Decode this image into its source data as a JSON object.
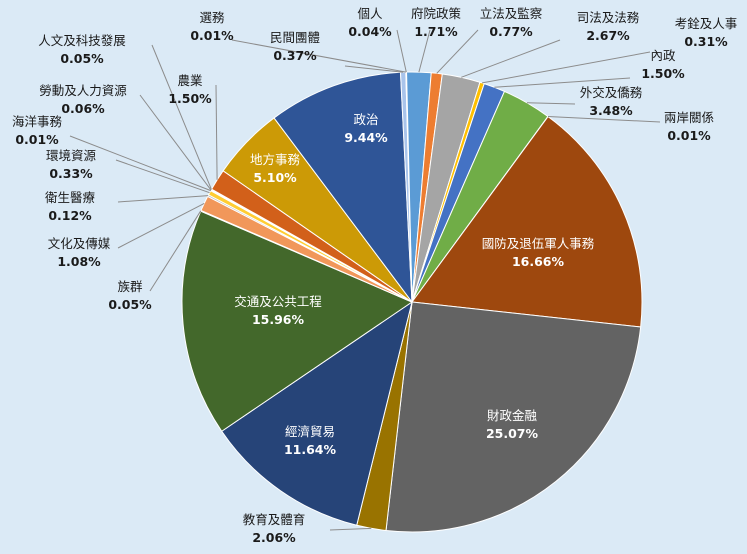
{
  "chart_data": {
    "type": "pie",
    "title": "",
    "start_category": "個人",
    "direction": "clockwise",
    "slices": [
      {
        "name": "個人",
        "value": 0.04,
        "label": "0.04%",
        "color": "#5a8a3c"
      },
      {
        "name": "府院政策",
        "value": 1.71,
        "label": "1.71%",
        "color": "#5b9bd5"
      },
      {
        "name": "立法及監察",
        "value": 0.77,
        "label": "0.77%",
        "color": "#ed7d31"
      },
      {
        "name": "司法及法務",
        "value": 2.67,
        "label": "2.67%",
        "color": "#a5a5a5"
      },
      {
        "name": "考銓及人事",
        "value": 0.31,
        "label": "0.31%",
        "color": "#ffc000"
      },
      {
        "name": "內政",
        "value": 1.5,
        "label": "1.50%",
        "color": "#4472c4"
      },
      {
        "name": "外交及僑務",
        "value": 3.48,
        "label": "3.48%",
        "color": "#70ad47"
      },
      {
        "name": "兩岸關係",
        "value": 0.01,
        "label": "0.01%",
        "color": "#264478"
      },
      {
        "name": "國防及退伍軍人事務",
        "value": 16.66,
        "label": "16.66%",
        "color": "#9e480e"
      },
      {
        "name": "財政金融",
        "value": 25.07,
        "label": "25.07%",
        "color": "#636363"
      },
      {
        "name": "教育及體育",
        "value": 2.06,
        "label": "2.06%",
        "color": "#997300"
      },
      {
        "name": "經濟貿易",
        "value": 11.64,
        "label": "11.64%",
        "color": "#264478"
      },
      {
        "name": "交通及公共工程",
        "value": 15.96,
        "label": "15.96%",
        "color": "#43682b"
      },
      {
        "name": "族群",
        "value": 0.05,
        "label": "0.05%",
        "color": "#698ed0"
      },
      {
        "name": "文化及傳媒",
        "value": 1.08,
        "label": "1.08%",
        "color": "#f1975a"
      },
      {
        "name": "衛生醫療",
        "value": 0.12,
        "label": "0.12%",
        "color": "#b7b7b7"
      },
      {
        "name": "環境資源",
        "value": 0.33,
        "label": "0.33%",
        "color": "#ffcd33"
      },
      {
        "name": "海洋事務",
        "value": 0.01,
        "label": "0.01%",
        "color": "#4a76c6"
      },
      {
        "name": "勞動及人力資源",
        "value": 0.06,
        "label": "0.06%",
        "color": "#8cc168"
      },
      {
        "name": "人文及科技發展",
        "value": 0.05,
        "label": "0.05%",
        "color": "#335aa1"
      },
      {
        "name": "農業",
        "value": 1.5,
        "label": "1.50%",
        "color": "#d2601a"
      },
      {
        "name": "地方事務",
        "value": 5.1,
        "label": "5.10%",
        "color": "#cc9a06"
      },
      {
        "name": "政治",
        "value": 9.44,
        "label": "9.44%",
        "color": "#2f5597"
      },
      {
        "name": "民間團體",
        "value": 0.37,
        "label": "0.37%",
        "color": "#a9c4eb"
      },
      {
        "name": "選務",
        "value": 0.01,
        "label": "0.01%",
        "color": "#70ad47"
      }
    ]
  }
}
